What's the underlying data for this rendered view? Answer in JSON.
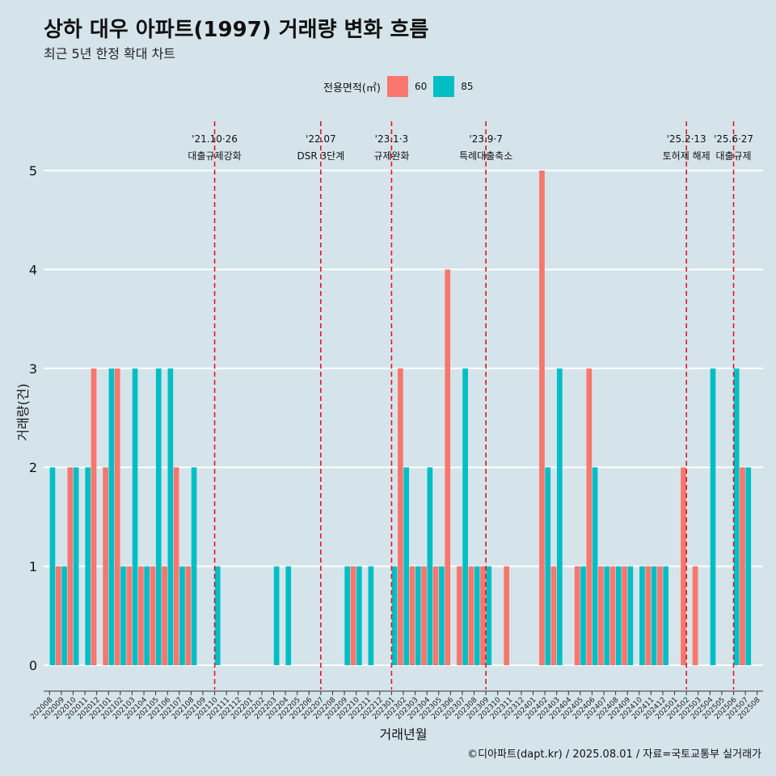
{
  "chart_data": {
    "type": "bar",
    "title": "상하 대우 아파트(1997) 거래량 변화 흐름",
    "subtitle": "최근 5년 한정 확대 차트",
    "xlabel": "거래년월",
    "ylabel": "거래량(건)",
    "ylim": [
      0,
      5
    ],
    "yticks": [
      0,
      1,
      2,
      3,
      4,
      5
    ],
    "legend_title": "전용면적(㎡)",
    "legend_position": "top",
    "grid": true,
    "colors": {
      "60": "#f8766d",
      "85": "#00bfc4"
    },
    "categories": [
      "202008",
      "202009",
      "202010",
      "202011",
      "202012",
      "202101",
      "202102",
      "202103",
      "202104",
      "202105",
      "202106",
      "202107",
      "202108",
      "202109",
      "202110",
      "202111",
      "202112",
      "202201",
      "202202",
      "202203",
      "202204",
      "202205",
      "202206",
      "202207",
      "202208",
      "202209",
      "202210",
      "202211",
      "202212",
      "202301",
      "202302",
      "202303",
      "202304",
      "202305",
      "202306",
      "202307",
      "202308",
      "202309",
      "202310",
      "202311",
      "202312",
      "202401",
      "202402",
      "202403",
      "202404",
      "202405",
      "202406",
      "202407",
      "202408",
      "202409",
      "202410",
      "202411",
      "202412",
      "202501",
      "202502",
      "202503",
      "202504",
      "202505",
      "202506",
      "202507",
      "202508"
    ],
    "series": [
      {
        "name": "60",
        "values": [
          0,
          1,
          2,
          0,
          3,
          2,
          3,
          1,
          1,
          1,
          1,
          2,
          1,
          0,
          0,
          0,
          0,
          0,
          0,
          0,
          0,
          0,
          0,
          0,
          0,
          0,
          1,
          0,
          0,
          0,
          3,
          1,
          1,
          1,
          4,
          1,
          1,
          1,
          0,
          1,
          0,
          0,
          5,
          1,
          0,
          1,
          3,
          1,
          1,
          1,
          0,
          1,
          1,
          0,
          2,
          1,
          0,
          0,
          0,
          2,
          0
        ]
      },
      {
        "name": "85",
        "values": [
          2,
          1,
          2,
          2,
          0,
          3,
          1,
          3,
          1,
          3,
          3,
          1,
          2,
          0,
          1,
          0,
          0,
          0,
          0,
          1,
          1,
          0,
          0,
          0,
          0,
          1,
          1,
          1,
          0,
          1,
          2,
          1,
          2,
          1,
          0,
          3,
          1,
          1,
          0,
          0,
          0,
          0,
          2,
          3,
          0,
          1,
          2,
          1,
          1,
          1,
          1,
          1,
          1,
          0,
          0,
          0,
          3,
          0,
          3,
          2,
          0
        ]
      }
    ],
    "events": [
      {
        "x": "202110",
        "date": "'21.10·26",
        "label": "대출규제강화"
      },
      {
        "x": "202207",
        "date": "'22.07",
        "label": "DSR 3단계"
      },
      {
        "x": "202301",
        "date": "'23.1·3",
        "label": "규제완화"
      },
      {
        "x": "202309",
        "date": "'23.9·7",
        "label": "특례대출축소"
      },
      {
        "x": "202502",
        "date": "'25.2·13",
        "label": "토허제 해제"
      },
      {
        "x": "202506",
        "date": "'25.6·27",
        "label": "대출규제"
      }
    ]
  },
  "caption": "©디아파트(dapt.kr) / 2025.08.01 / 자료=국토교통부 실거래가"
}
